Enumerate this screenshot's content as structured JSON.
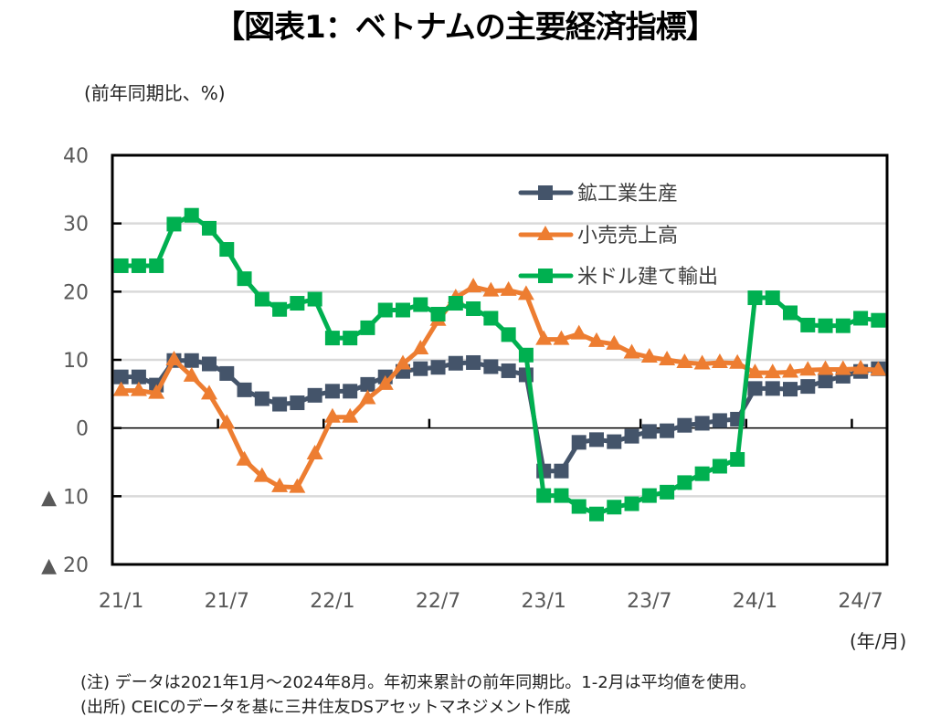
{
  "header": {
    "title": "【図表1：ベトナムの主要経済指標】",
    "y_unit": "(前年同期比、%)",
    "x_unit": "(年/月)"
  },
  "notes": {
    "note": "(注) データは2021年1月～2024年8月。年初来累計の前年同期比。1-2月は平均値を使用。",
    "source": "(出所) CEICのデータを基に三井住友DSアセットマネジメント作成"
  },
  "chart_data": {
    "type": "line",
    "title": "【図表1：ベトナムの主要経済指標】",
    "ylabel": "(前年同期比、%)",
    "xlabel": "(年/月)",
    "ylim": [
      -20,
      40
    ],
    "yticks": [
      40,
      30,
      20,
      10,
      0,
      -10,
      -20
    ],
    "ytick_labels": [
      "40",
      "30",
      "20",
      "10",
      "0",
      "▲ 10",
      "▲ 20"
    ],
    "grid": true,
    "legend_position": "top-right",
    "x": [
      "21/1",
      "21/2",
      "21/3",
      "21/4",
      "21/5",
      "21/6",
      "21/7",
      "21/8",
      "21/9",
      "21/10",
      "21/11",
      "21/12",
      "22/1",
      "22/2",
      "22/3",
      "22/4",
      "22/5",
      "22/6",
      "22/7",
      "22/8",
      "22/9",
      "22/10",
      "22/11",
      "22/12",
      "23/1",
      "23/2",
      "23/3",
      "23/4",
      "23/5",
      "23/6",
      "23/7",
      "23/8",
      "23/9",
      "23/10",
      "23/11",
      "23/12",
      "24/1",
      "24/2",
      "24/3",
      "24/4",
      "24/5",
      "24/6",
      "24/7",
      "24/8"
    ],
    "xtick_labels": [
      "21/1",
      "21/7",
      "22/1",
      "22/7",
      "23/1",
      "23/7",
      "24/1",
      "24/7"
    ],
    "series": [
      {
        "name": "鉱工業生産",
        "color": "#44546A",
        "marker": "square",
        "values": [
          7.5,
          7.5,
          6.3,
          9.9,
          9.9,
          9.4,
          8.0,
          5.6,
          4.3,
          3.5,
          3.7,
          4.8,
          5.4,
          5.4,
          6.4,
          7.5,
          8.3,
          8.7,
          8.9,
          9.5,
          9.6,
          9.0,
          8.4,
          7.8,
          -6.3,
          -6.3,
          -2.1,
          -1.7,
          -2.0,
          -1.2,
          -0.5,
          -0.4,
          0.4,
          0.7,
          1.1,
          1.3,
          5.8,
          5.8,
          5.7,
          6.1,
          6.9,
          7.6,
          8.3,
          8.7
        ]
      },
      {
        "name": "小売売上高",
        "color": "#ED7D31",
        "marker": "triangle",
        "values": [
          5.5,
          5.5,
          5.1,
          10.0,
          7.6,
          5.0,
          0.7,
          -4.7,
          -7.1,
          -8.6,
          -8.7,
          -3.8,
          1.6,
          1.6,
          4.3,
          6.4,
          9.4,
          11.6,
          15.8,
          19.1,
          20.7,
          20.1,
          20.2,
          19.6,
          13.0,
          13.0,
          13.8,
          12.7,
          12.3,
          11.0,
          10.4,
          10.0,
          9.6,
          9.4,
          9.6,
          9.5,
          8.1,
          8.1,
          8.2,
          8.5,
          8.6,
          8.6,
          8.7,
          8.5
        ]
      },
      {
        "name": "米ドル建て輸出",
        "color": "#00B050",
        "marker": "square",
        "values": [
          23.8,
          23.8,
          23.8,
          29.9,
          31.2,
          29.3,
          26.2,
          21.9,
          18.9,
          17.4,
          18.3,
          18.9,
          13.2,
          13.2,
          14.7,
          17.3,
          17.3,
          18.1,
          16.7,
          18.3,
          17.5,
          16.1,
          13.7,
          10.7,
          -9.9,
          -9.9,
          -11.5,
          -12.6,
          -11.6,
          -11.1,
          -9.9,
          -9.4,
          -8.0,
          -6.7,
          -5.6,
          -4.6,
          19.1,
          19.1,
          16.9,
          15.1,
          15.0,
          15.0,
          16.1,
          15.8
        ]
      }
    ]
  }
}
